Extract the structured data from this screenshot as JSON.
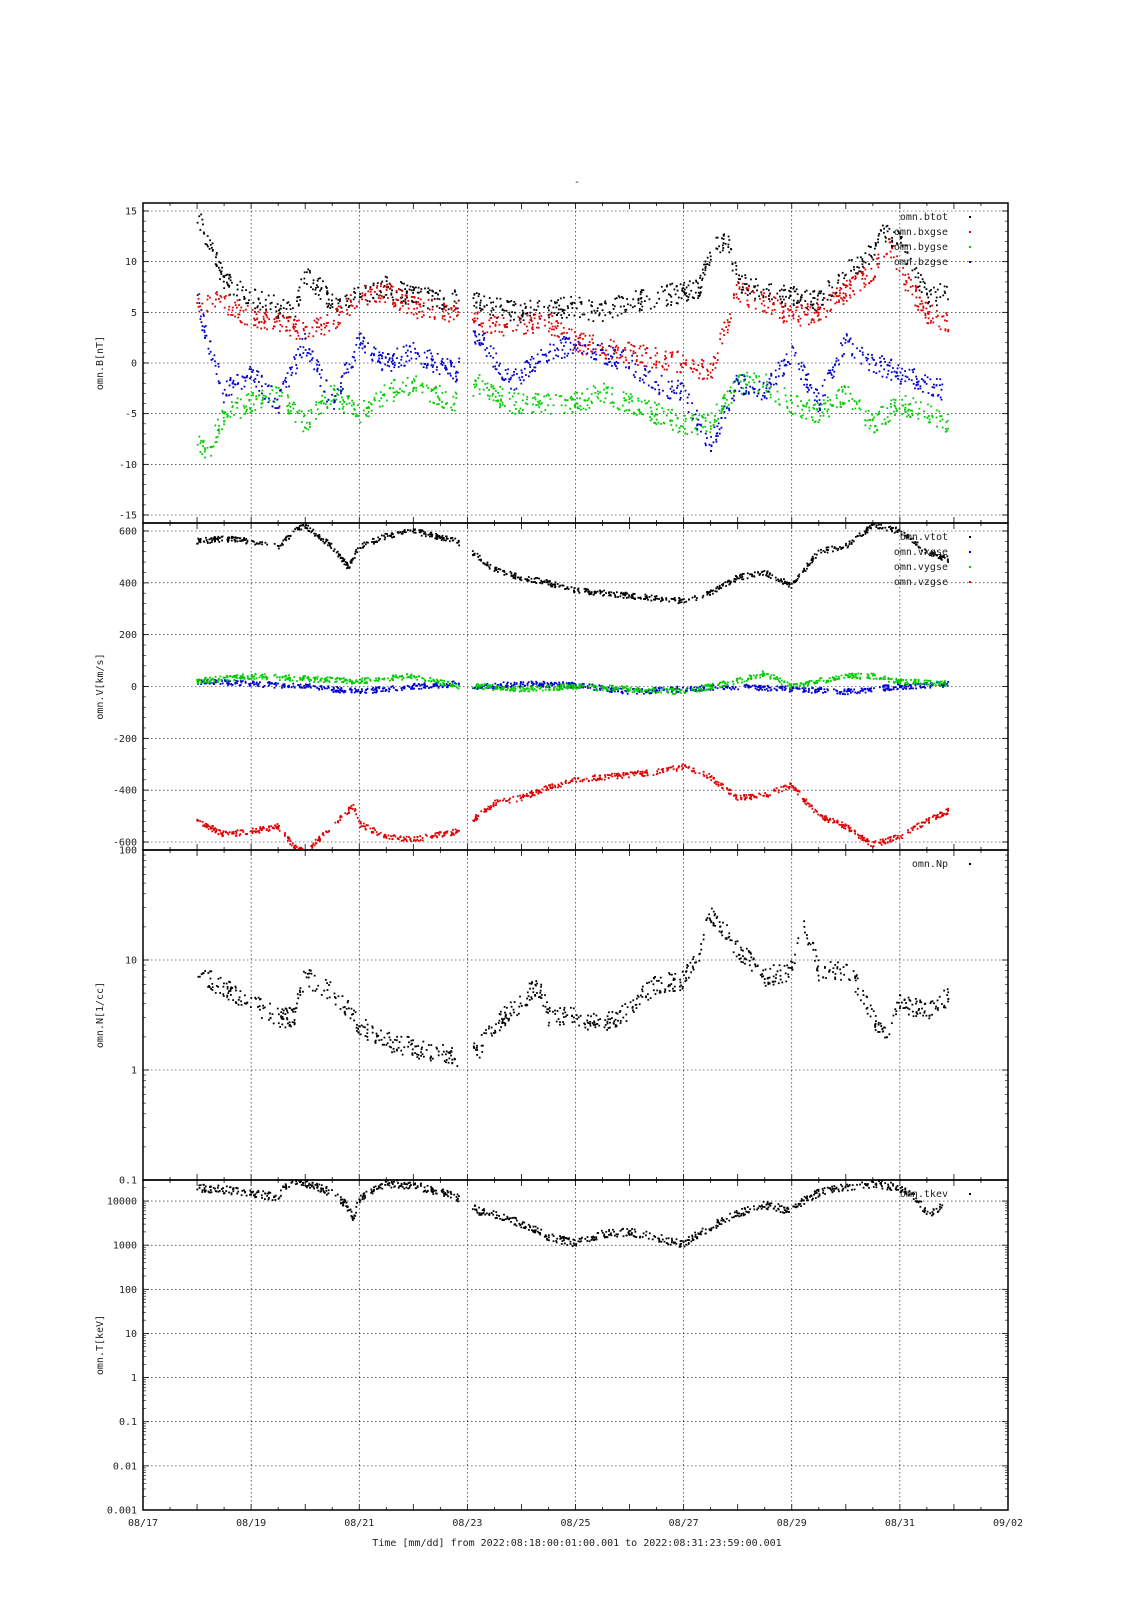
{
  "figure": {
    "title": "-",
    "xlabel": "Time [mm/dd]  from 2022:08:18:00:01:00.001  to  2022:08:31:23:59:00.001",
    "x_ticks": [
      "08/17",
      "08/19",
      "08/21",
      "08/23",
      "08/25",
      "08/27",
      "08/29",
      "08/31",
      "09/02"
    ]
  },
  "colors": {
    "black": "#000000",
    "red": "#dd0000",
    "green": "#00cc00",
    "blue": "#0000cc"
  },
  "chart_data": [
    {
      "type": "scatter",
      "ylabel": "omn.B[nT]",
      "xlim": [
        "08/17",
        "09/02"
      ],
      "ylim": [
        -15,
        15
      ],
      "y_ticks": [
        15,
        10,
        5,
        0,
        -5,
        -10,
        -15
      ],
      "grid": true,
      "legend_position": "top-right",
      "series": [
        {
          "name": "omn.btot",
          "color": "#000000",
          "x": [
            18.0,
            18.5,
            19.0,
            19.5,
            19.8,
            20.0,
            20.5,
            21.0,
            21.5,
            22.0,
            22.8,
            23.2,
            23.5,
            24.0,
            24.5,
            25.0,
            25.5,
            26.0,
            26.5,
            27.0,
            27.3,
            27.5,
            27.8,
            28.0,
            28.5,
            29.0,
            29.5,
            30.0,
            30.5,
            30.7,
            31.0,
            31.5,
            31.9
          ],
          "y": [
            15,
            8,
            6.5,
            5.5,
            5,
            9,
            6,
            6.5,
            7.5,
            6.5,
            6.3,
            6,
            5.5,
            5,
            5.5,
            5.5,
            5,
            6,
            6.5,
            7,
            7.5,
            11,
            12.5,
            8,
            7,
            6.5,
            6,
            9,
            11,
            13,
            12,
            6.5,
            7
          ]
        },
        {
          "name": "omn.bxgse",
          "color": "#dd0000",
          "x": [
            18.0,
            18.5,
            19.0,
            19.5,
            20.0,
            20.5,
            21.0,
            21.5,
            22.0,
            22.8,
            23.2,
            23.8,
            24.5,
            25.0,
            25.5,
            26.0,
            26.5,
            27.0,
            27.5,
            28.0,
            28.5,
            29.0,
            29.5,
            30.0,
            30.5,
            30.8,
            31.0,
            31.5,
            31.9
          ],
          "y": [
            6,
            6,
            4.5,
            4,
            3,
            4,
            6.5,
            7,
            5.5,
            5,
            4,
            3.5,
            4,
            2,
            1.5,
            1,
            0.5,
            0,
            -1,
            7,
            6,
            4.5,
            5,
            7,
            9,
            12,
            9,
            5,
            4
          ]
        },
        {
          "name": "omn.bygse",
          "color": "#00cc00",
          "x": [
            18.0,
            18.2,
            18.5,
            19.0,
            19.5,
            20.0,
            20.5,
            21.0,
            21.5,
            22.0,
            22.8,
            23.2,
            23.8,
            24.5,
            25.0,
            25.5,
            26.0,
            26.5,
            27.0,
            27.5,
            28.0,
            28.5,
            29.0,
            29.5,
            30.0,
            30.5,
            31.0,
            31.5,
            31.9
          ],
          "y": [
            -8,
            -9,
            -5,
            -4,
            -3,
            -6,
            -3,
            -5,
            -3,
            -2,
            -4,
            -2,
            -4,
            -4,
            -4,
            -3,
            -4,
            -5,
            -6,
            -6,
            -2,
            -2,
            -4,
            -5,
            -3,
            -6,
            -4,
            -5,
            -6
          ]
        },
        {
          "name": "omn.bzgse",
          "color": "#0000cc",
          "x": [
            18.0,
            18.5,
            19.0,
            19.5,
            20.0,
            20.5,
            21.0,
            21.5,
            22.0,
            22.8,
            23.2,
            23.8,
            24.5,
            25.0,
            25.5,
            26.0,
            26.5,
            27.0,
            27.5,
            28.0,
            28.5,
            29.0,
            29.5,
            30.0,
            30.5,
            31.0,
            31.5,
            31.9
          ],
          "y": [
            6,
            -3,
            -1,
            -4,
            2,
            -4,
            2,
            0,
            1,
            -1,
            3,
            -2,
            1,
            2,
            1,
            0,
            -2,
            -3,
            -8,
            -2,
            -3,
            1,
            -4,
            2,
            0,
            -1,
            -2,
            -3
          ]
        }
      ]
    },
    {
      "type": "scatter",
      "ylabel": "omn.V[km/s]",
      "xlim": [
        "08/17",
        "09/02"
      ],
      "ylim": [
        -600,
        600
      ],
      "y_ticks": [
        600,
        400,
        200,
        0,
        -200,
        -400,
        -600
      ],
      "grid": true,
      "legend_position": "top-right",
      "series": [
        {
          "name": "omn.vtot",
          "color": "#000000",
          "x": [
            18.0,
            18.5,
            19.0,
            19.5,
            19.8,
            20.0,
            20.5,
            20.8,
            21.0,
            21.5,
            22.0,
            22.8,
            23.2,
            23.5,
            24.0,
            24.5,
            25.0,
            25.5,
            26.0,
            26.5,
            27.0,
            27.5,
            28.0,
            28.5,
            29.0,
            29.5,
            30.0,
            30.5,
            31.0,
            31.5,
            31.9
          ],
          "y": [
            560,
            570,
            560,
            540,
            600,
            620,
            540,
            460,
            540,
            580,
            600,
            560,
            500,
            450,
            420,
            400,
            370,
            360,
            350,
            340,
            330,
            360,
            420,
            440,
            390,
            520,
            540,
            620,
            600,
            520,
            490
          ]
        },
        {
          "name": "omn.vxgse",
          "color": "#0000cc",
          "x": [
            18.0,
            19.0,
            20.0,
            21.0,
            22.0,
            22.8,
            23.2,
            24.0,
            25.0,
            26.0,
            27.0,
            28.0,
            29.0,
            30.0,
            31.0,
            31.9
          ],
          "y": [
            20,
            10,
            0,
            -20,
            0,
            10,
            0,
            10,
            5,
            -20,
            -10,
            0,
            -10,
            -20,
            0,
            10
          ]
        },
        {
          "name": "omn.vygse",
          "color": "#00cc00",
          "x": [
            18.0,
            19.0,
            20.0,
            21.0,
            22.0,
            22.8,
            23.2,
            24.0,
            25.0,
            26.0,
            27.0,
            28.0,
            28.5,
            29.0,
            30.0,
            30.5,
            31.0,
            31.9
          ],
          "y": [
            20,
            40,
            30,
            20,
            40,
            0,
            0,
            -10,
            0,
            -10,
            -20,
            20,
            50,
            0,
            40,
            40,
            20,
            10
          ]
        },
        {
          "name": "omn.vzgse",
          "color": "#dd0000",
          "x": [
            18.0,
            18.5,
            19.0,
            19.5,
            19.8,
            20.0,
            20.5,
            20.9,
            21.0,
            21.5,
            22.0,
            22.8,
            23.2,
            23.5,
            24.0,
            24.5,
            25.0,
            25.5,
            26.0,
            26.5,
            27.0,
            27.5,
            28.0,
            28.5,
            29.0,
            29.5,
            30.0,
            30.5,
            31.0,
            31.5,
            31.9
          ],
          "y": [
            -520,
            -570,
            -560,
            -540,
            -620,
            -640,
            -540,
            -460,
            -530,
            -580,
            -590,
            -560,
            -500,
            -450,
            -430,
            -390,
            -360,
            -350,
            -340,
            -330,
            -310,
            -350,
            -430,
            -420,
            -380,
            -500,
            -540,
            -610,
            -580,
            -520,
            -480
          ]
        }
      ]
    },
    {
      "type": "scatter",
      "ylabel": "omn.N[1/cc]",
      "xlim": [
        "08/17",
        "09/02"
      ],
      "yscale": "log",
      "ylim": [
        0.1,
        100
      ],
      "y_ticks": [
        "100",
        "10",
        "1",
        "0.1"
      ],
      "grid": true,
      "legend_position": "top-right",
      "series": [
        {
          "name": "omn.Np",
          "color": "#000000",
          "x": [
            18.0,
            18.5,
            19.0,
            19.5,
            19.8,
            20.0,
            20.5,
            20.8,
            21.0,
            21.5,
            22.0,
            22.8,
            23.2,
            23.5,
            24.0,
            24.3,
            24.5,
            25.0,
            25.5,
            26.0,
            26.5,
            27.0,
            27.3,
            27.5,
            28.0,
            28.5,
            29.0,
            29.2,
            29.5,
            30.0,
            30.5,
            30.8,
            31.0,
            31.5,
            31.9
          ],
          "y": [
            7.5,
            5.5,
            4,
            3,
            3,
            7,
            5,
            3.5,
            2.5,
            1.8,
            1.6,
            1.3,
            1.5,
            2.5,
            4,
            6,
            3,
            3,
            2.5,
            3.5,
            6,
            6.5,
            12,
            25,
            12,
            7,
            8,
            20,
            8,
            8,
            3,
            2,
            4,
            3.5,
            4.5
          ]
        }
      ]
    },
    {
      "type": "scatter",
      "ylabel": "omn.T[keV]",
      "xlim": [
        "08/17",
        "09/02"
      ],
      "yscale": "log",
      "ylim": [
        0.001,
        30000
      ],
      "y_ticks": [
        "10000",
        "1000",
        "100",
        "10",
        "1",
        "0.1",
        "0.01",
        "0.001"
      ],
      "grid": true,
      "legend_position": "top-right",
      "series": [
        {
          "name": "omn.tkev",
          "color": "#000000",
          "x": [
            18.0,
            18.5,
            19.0,
            19.5,
            19.8,
            20.0,
            20.5,
            20.9,
            21.0,
            21.5,
            22.0,
            22.8,
            23.2,
            23.5,
            24.0,
            24.5,
            25.0,
            25.5,
            26.0,
            26.5,
            27.0,
            27.5,
            28.0,
            28.5,
            29.0,
            29.5,
            30.0,
            30.5,
            31.0,
            31.5,
            31.9
          ],
          "y": [
            20000,
            18000,
            15000,
            12000,
            30000,
            25000,
            15000,
            4000,
            10000,
            25000,
            22000,
            12000,
            6000,
            5000,
            3000,
            1500,
            1100,
            1800,
            2000,
            1500,
            1000,
            2500,
            5000,
            8000,
            6000,
            15000,
            20000,
            25000,
            20000,
            5000,
            8000
          ]
        }
      ]
    }
  ]
}
